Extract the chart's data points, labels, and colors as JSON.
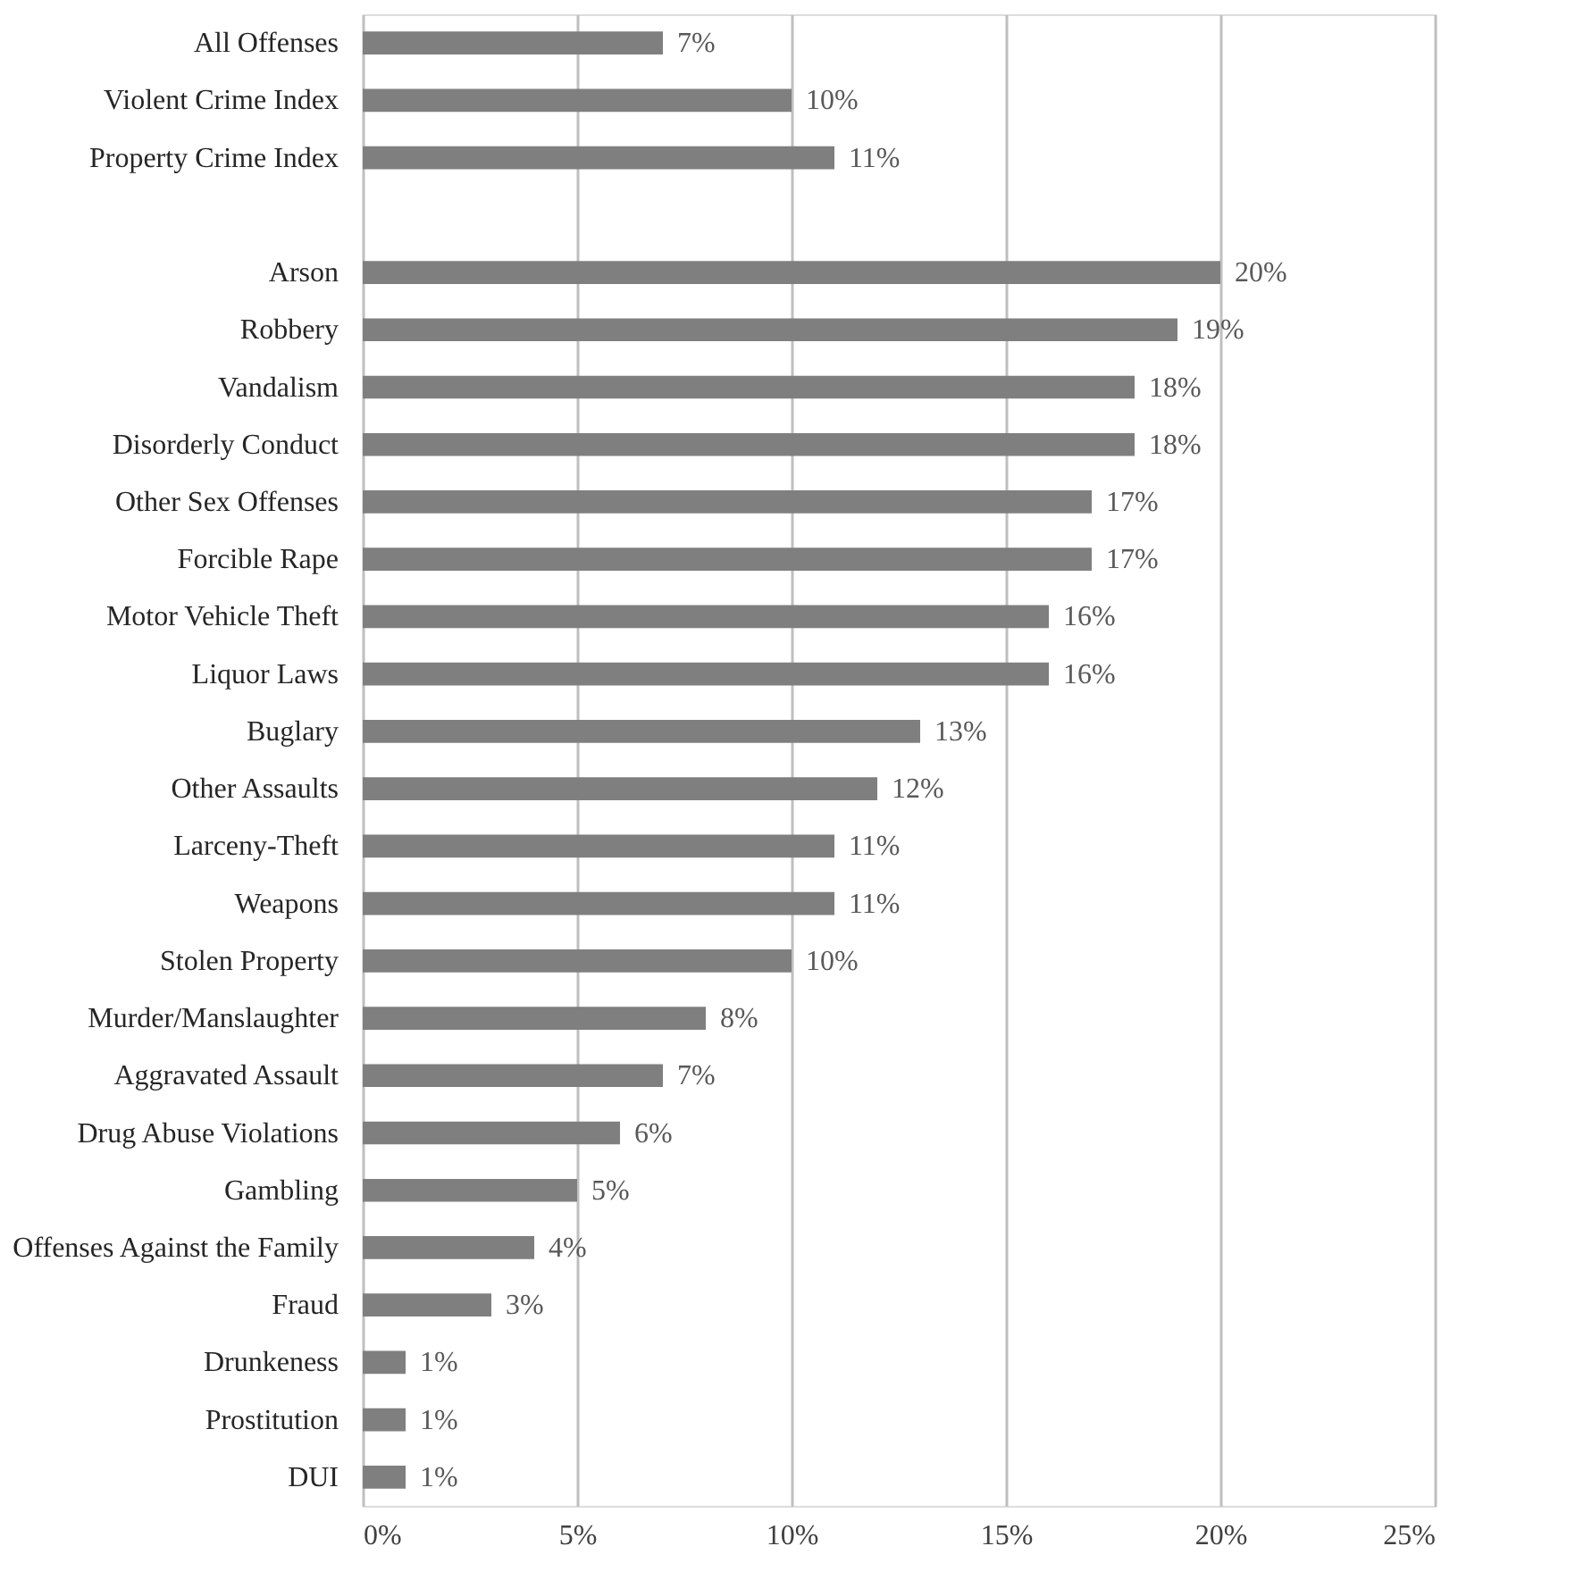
{
  "chart_data": {
    "type": "bar",
    "orientation": "horizontal",
    "categories": [
      "All Offenses",
      "Violent Crime Index",
      "Property Crime Index",
      null,
      "Arson",
      "Robbery",
      "Vandalism",
      "Disorderly Conduct",
      "Other Sex Offenses",
      "Forcible Rape",
      "Motor Vehicle Theft",
      "Liquor Laws",
      "Buglary",
      "Other Assaults",
      "Larceny-Theft",
      "Weapons",
      "Stolen Property",
      "Murder/Manslaughter",
      "Aggravated Assault",
      "Drug Abuse Violations",
      "Gambling",
      "Offenses Against the Family",
      "Fraud",
      "Drunkeness",
      "Prostitution",
      "DUI"
    ],
    "values": [
      7,
      10,
      11,
      null,
      20,
      19,
      18,
      18,
      17,
      17,
      16,
      16,
      13,
      12,
      11,
      11,
      10,
      8,
      7,
      6,
      5,
      4,
      3,
      1,
      1,
      1
    ],
    "value_labels": [
      "7%",
      "10%",
      "11%",
      null,
      "20%",
      "19%",
      "18%",
      "18%",
      "17%",
      "17%",
      "16%",
      "16%",
      "13%",
      "12%",
      "11%",
      "11%",
      "10%",
      "8%",
      "7%",
      "6%",
      "5%",
      "4%",
      "3%",
      "1%",
      "1%",
      "1%"
    ],
    "color": "#7f7f7f",
    "xlim": [
      0,
      25
    ],
    "xticks": [
      {
        "value": 0,
        "label": "0%"
      },
      {
        "value": 5,
        "label": "5%"
      },
      {
        "value": 10,
        "label": "10%"
      },
      {
        "value": 15,
        "label": "15%"
      },
      {
        "value": 20,
        "label": "20%"
      },
      {
        "value": 25,
        "label": "25%"
      }
    ],
    "grid": "x"
  }
}
